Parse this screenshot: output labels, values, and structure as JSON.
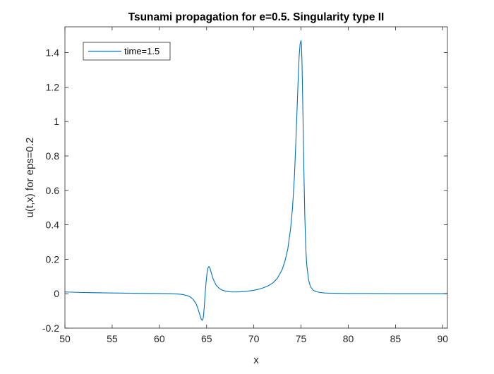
{
  "chart_data": {
    "type": "line",
    "title": "Tsunami propagation for e=0.5. Singularity type II",
    "xlabel": "x",
    "ylabel": "u(t,x) for eps=0.2",
    "xlim": [
      50,
      90.5
    ],
    "ylim": [
      -0.2,
      1.55
    ],
    "xticks": [
      50,
      55,
      60,
      65,
      70,
      75,
      80,
      85,
      90
    ],
    "xtick_labels": [
      "50",
      "55",
      "60",
      "65",
      "70",
      "75",
      "80",
      "85",
      "90"
    ],
    "yticks": [
      -0.2,
      0,
      0.2,
      0.4,
      0.6,
      0.8,
      1,
      1.2,
      1.4
    ],
    "ytick_labels": [
      "-0.2",
      "0",
      "0.2",
      "0.4",
      "0.6",
      "0.8",
      "1",
      "1.2",
      "1.4"
    ],
    "grid": false,
    "legend_position": "top-left",
    "series": [
      {
        "name": "time=1.5",
        "color": "#0072bd",
        "x": [
          50,
          52,
          55,
          58,
          60,
          61,
          62,
          62.5,
          63,
          63.3,
          63.6,
          63.9,
          64.1,
          64.3,
          64.45,
          64.55,
          64.65,
          64.75,
          64.85,
          64.95,
          65.05,
          65.15,
          65.25,
          65.35,
          65.5,
          65.7,
          66,
          66.3,
          66.6,
          67,
          67.5,
          68,
          68.5,
          69,
          69.5,
          70,
          70.5,
          71,
          71.5,
          72,
          72.5,
          73,
          73.3,
          73.6,
          73.9,
          74.1,
          74.3,
          74.45,
          74.6,
          74.7,
          74.8,
          74.9,
          75,
          75.05,
          75.1,
          75.2,
          75.3,
          75.4,
          75.5,
          75.6,
          75.8,
          76,
          76.3,
          76.6,
          77,
          77.5,
          78,
          79,
          80,
          82,
          85,
          88,
          90.5
        ],
        "y": [
          0.01,
          0.007,
          0.004,
          0.002,
          0.001,
          0.0,
          -0.002,
          -0.005,
          -0.012,
          -0.02,
          -0.035,
          -0.06,
          -0.09,
          -0.125,
          -0.15,
          -0.155,
          -0.14,
          -0.08,
          0.0,
          0.07,
          0.12,
          0.15,
          0.158,
          0.15,
          0.12,
          0.085,
          0.05,
          0.033,
          0.022,
          0.015,
          0.011,
          0.01,
          0.011,
          0.013,
          0.016,
          0.02,
          0.026,
          0.034,
          0.045,
          0.062,
          0.09,
          0.14,
          0.19,
          0.26,
          0.38,
          0.5,
          0.68,
          0.88,
          1.1,
          1.25,
          1.38,
          1.45,
          1.47,
          1.44,
          1.35,
          1.05,
          0.72,
          0.45,
          0.27,
          0.17,
          0.08,
          0.04,
          0.02,
          0.012,
          0.007,
          0.004,
          0.003,
          0.002,
          0.001,
          0.001,
          0.0,
          0.0,
          0.0
        ]
      }
    ]
  }
}
